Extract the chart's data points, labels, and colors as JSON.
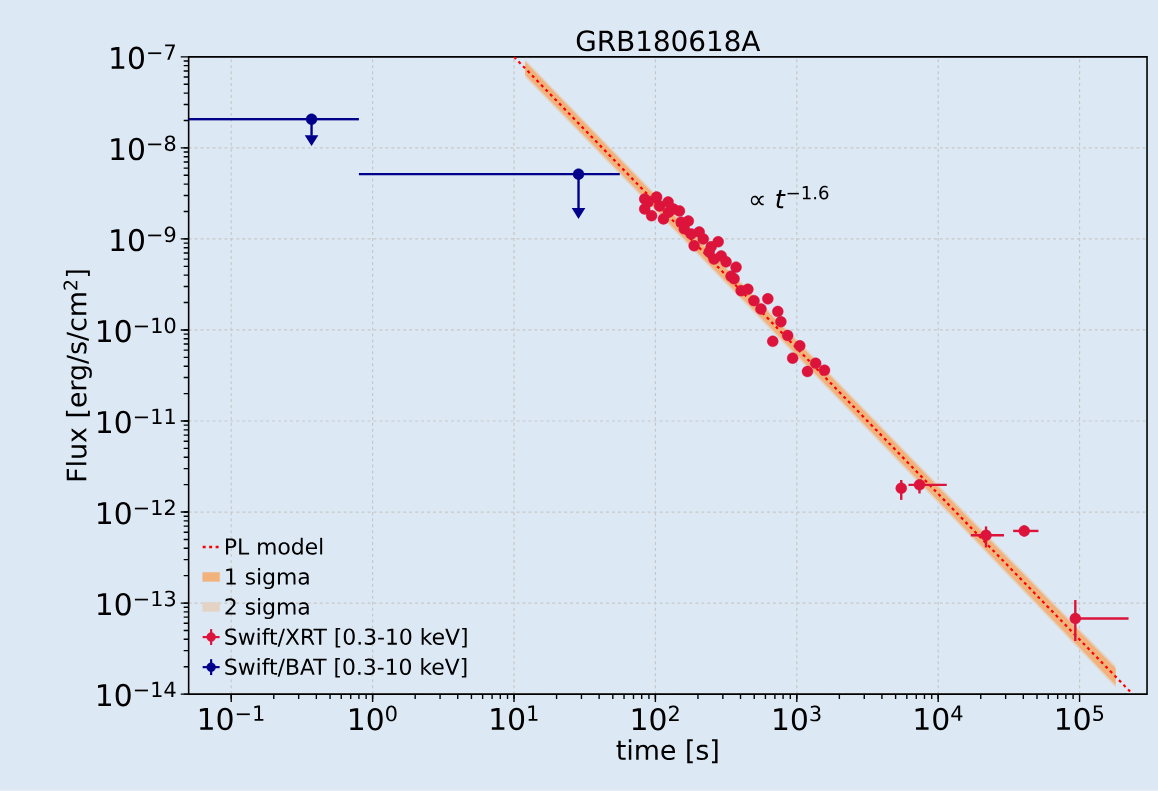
{
  "chart_data": {
    "type": "scatter",
    "title": "GRB180618A",
    "xlabel": "time [s]",
    "ylabel": "Flux [erg/s/cm$^{2}$]",
    "annotations": [
      "∝ *t*$^{−1.6}$"
    ],
    "log": "xy",
    "grid": true,
    "legend": "bottom left",
    "xlim": [
      0.05,
      300000
    ],
    "ylim": [
      1e-14,
      1e-07
    ],
    "xticks": [
      {
        "value": 0.1,
        "label": "10$^{−1}$"
      },
      {
        "value": 1,
        "label": "10$^{0}$"
      },
      {
        "value": 10,
        "label": "10$^{1}$"
      },
      {
        "value": 100,
        "label": "10$^{2}$"
      },
      {
        "value": 1000,
        "label": "10$^{3}$"
      },
      {
        "value": 10000,
        "label": "10$^{4}$"
      },
      {
        "value": 100000,
        "label": "10$^{5}$"
      }
    ],
    "yticks": [
      {
        "value": 1e-14,
        "label": "10$^{−14}$"
      },
      {
        "value": 1e-13,
        "label": "10$^{−13}$"
      },
      {
        "value": 1e-12,
        "label": "10$^{−12}$"
      },
      {
        "value": 1e-11,
        "label": "10$^{−11}$"
      },
      {
        "value": 1e-10,
        "label": "10$^{−10}$"
      },
      {
        "value": 1e-09,
        "label": "10$^{−9}$"
      },
      {
        "value": 1e-08,
        "label": "10$^{−8}$"
      },
      {
        "value": 1e-07,
        "label": "10$^{−7}$"
      }
    ],
    "series": [
      {
        "name": "PL model",
        "type": "line",
        "color": "#ff0000",
        "line_style": "dotted",
        "marker": "none",
        "x": [
          10,
          237000
        ],
        "values": [
          1e-07,
          1e-14
        ]
      },
      {
        "name": "1 sigma",
        "type": "line",
        "color": "#f2b27c",
        "x": [
          12,
          100,
          1000,
          10000,
          100000,
          180000
        ],
        "values": [
          null,
          null,
          null,
          null,
          null,
          null
        ],
        "upper": [
          8.81e-08,
          2.96e-09,
          7.45e-11,
          1.88e-12,
          4.86e-14,
          1.91e-14
        ],
        "lower": [
          6.35e-08,
          2.13e-09,
          5.36e-11,
          1.33e-12,
          3.26e-14,
          1.26e-14
        ]
      },
      {
        "name": "2 sigma",
        "type": "line",
        "color": "#e4d3c4",
        "x": [
          12,
          100,
          1000,
          10000,
          100000,
          180000
        ],
        "values": [
          null,
          null,
          null,
          null,
          null,
          null
        ],
        "upper": [
          9.34e-08,
          3.14e-09,
          7.89e-11,
          2.01e-12,
          5.17e-14,
          2.05e-14
        ],
        "lower": [
          5.98e-08,
          2.01e-09,
          5.05e-11,
          1.25e-12,
          3.06e-14,
          1.18e-14
        ]
      },
      {
        "name": "Swift/XRT [0.3-10 keV]",
        "type": "scatter",
        "color": "#dc143c",
        "marker": "circle",
        "x": [
          84,
          84,
          89,
          94,
          102,
          107,
          114,
          123,
          124,
          134,
          148,
          152,
          160,
          171,
          179,
          188,
          204,
          218,
          240,
          248,
          260,
          278,
          292,
          316,
          343,
          360,
          372,
          404,
          451,
          498,
          558,
          624,
          676,
          734,
          772,
          862,
          935,
          1050,
          1190,
          1360,
          1570,
          5480,
          7380,
          21800,
          40600,
          93300
        ],
        "values": [
          2.74e-09,
          2.13e-09,
          2.54e-09,
          1.8e-09,
          2.88e-09,
          2.3e-09,
          1.66e-09,
          2.54e-09,
          1.97e-09,
          2.13e-09,
          2.03e-09,
          1.53e-09,
          1.29e-09,
          1.57e-09,
          1.13e-09,
          8.4e-10,
          1.19e-09,
          1e-09,
          7.2e-10,
          8.2e-10,
          6e-10,
          9.3e-10,
          6.5e-10,
          5.6e-10,
          3.9e-10,
          3.65e-10,
          4.9e-10,
          2.7e-10,
          2.8e-10,
          2.1e-10,
          1.7e-10,
          2.2e-10,
          7.5e-11,
          1.6e-10,
          1.23e-10,
          8.7e-11,
          4.9e-11,
          6.7e-11,
          3.5e-11,
          4.3e-11,
          3.6e-11,
          1.83e-12,
          1.99e-12,
          5.55e-13,
          6.2e-13,
          6.76e-14
        ],
        "errors": [
          null,
          null,
          null,
          null,
          null,
          null,
          null,
          null,
          null,
          null,
          null,
          null,
          null,
          null,
          null,
          null,
          null,
          null,
          null,
          null,
          null,
          null,
          null,
          null,
          null,
          null,
          null,
          null,
          null,
          null,
          null,
          null,
          null,
          null,
          null,
          null,
          null,
          null,
          null,
          null,
          null,
          [
            1.36e-12,
            2.25e-12
          ],
          [
            1.6e-12,
            2.25e-12
          ],
          [
            4.09e-13,
            6.95e-13
          ],
          [
            5.4e-13,
            7.1e-13
          ],
          [
            3.83e-14,
            1.08e-13
          ]
        ],
        "xerrors": [
          null,
          null,
          null,
          null,
          null,
          null,
          null,
          null,
          null,
          null,
          null,
          null,
          null,
          null,
          null,
          null,
          null,
          null,
          null,
          null,
          null,
          null,
          null,
          null,
          null,
          null,
          null,
          null,
          null,
          null,
          null,
          null,
          null,
          null,
          null,
          null,
          null,
          null,
          null,
          null,
          null,
          null,
          [
            6170,
            11500
          ],
          [
            17000,
            29200
          ],
          [
            33900,
            51200
          ],
          [
            87500,
            222000
          ]
        ]
      },
      {
        "name": "Swift/BAT [0.3-10 keV]",
        "type": "scatter",
        "color": "#00008b",
        "marker": "circle",
        "x": [
          0.37,
          28.6
        ],
        "values": [
          2.06e-08,
          5.15e-09
        ],
        "errors": [
          [
            1.38e-08,
            2.06e-08
          ],
          [
            2.18e-09,
            5.15e-09
          ]
        ],
        "xerrors": [
          [
            0.05,
            0.8
          ],
          [
            0.8,
            56
          ]
        ]
      }
    ]
  }
}
